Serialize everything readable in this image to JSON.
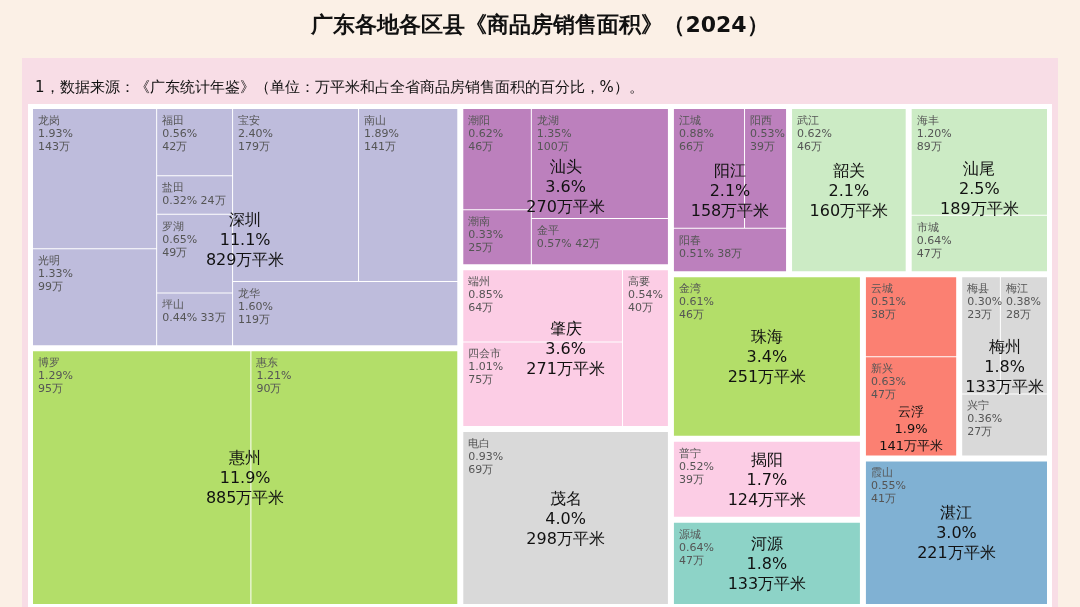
{
  "chart_data": {
    "type": "other",
    "title": "广东各地各区县《商品房销售面积》（2024）",
    "subtitle": "1，数据来源：《广东统计年鉴》（单位：万平米和占全省商品房销售面积的百分比，%）。",
    "categories": [
      "深圳",
      "惠州",
      "汕头",
      "肇庆",
      "茂名",
      "阳江",
      "韶关",
      "汕尾",
      "珠海",
      "揭阳",
      "河源",
      "云浮",
      "梅州",
      "湛江",
      "龙岗",
      "光明",
      "福田",
      "盐田",
      "罗湖",
      "坪山",
      "宝安",
      "南山",
      "龙华",
      "博罗",
      "惠东",
      "潮阳",
      "潮南",
      "龙湖",
      "金平",
      "端州",
      "四会市",
      "高要",
      "电白",
      "江城",
      "阳西",
      "阳春",
      "武江",
      "海丰",
      "市城",
      "金湾",
      "普宁",
      "源城",
      "云城",
      "新兴",
      "梅县",
      "梅江",
      "兴宁",
      "霞山"
    ],
    "series": [
      {
        "color": "#bebcdc",
        "values": [
          829,
          null,
          null,
          null,
          null,
          null,
          null,
          null,
          null,
          null,
          null,
          null,
          null,
          null,
          143,
          99,
          42,
          24,
          49,
          33,
          179,
          141,
          119,
          null,
          null,
          null,
          null,
          null,
          null,
          null,
          null,
          null,
          null,
          null,
          null,
          null,
          null,
          null,
          null,
          null,
          null,
          null,
          null,
          null,
          null,
          null,
          null,
          null
        ],
        "value_labels": [
          "11.1%\n829万平米",
          null,
          null,
          null,
          null,
          null,
          null,
          null,
          null,
          null,
          null,
          null,
          null,
          null,
          "1.93%\n143万",
          "1.33%\n99万",
          "0.56%\n42万",
          "0.32%\n24万",
          "0.65%\n49万",
          "0.44%\n33万",
          "2.40%\n179万",
          "1.89%\n141万",
          "1.60%\n119万",
          null,
          null,
          null,
          null,
          null,
          null,
          null,
          null,
          null,
          null,
          null,
          null,
          null,
          null,
          null,
          null,
          null,
          null,
          null,
          null,
          null,
          null,
          null,
          null,
          null
        ]
      },
      {
        "color": "#b3de69",
        "values": [
          null,
          885,
          null,
          null,
          null,
          null,
          null,
          null,
          null,
          null,
          null,
          null,
          null,
          null,
          null,
          null,
          null,
          null,
          null,
          null,
          null,
          null,
          null,
          95,
          90,
          null,
          null,
          null,
          null,
          null,
          null,
          null,
          null,
          null,
          null,
          null,
          null,
          null,
          null,
          null,
          null,
          null,
          null,
          null,
          null,
          null,
          null,
          null
        ],
        "value_labels": [
          null,
          "11.9%\n885万平米",
          null,
          null,
          null,
          null,
          null,
          null,
          null,
          null,
          null,
          null,
          null,
          null,
          null,
          null,
          null,
          null,
          null,
          null,
          null,
          null,
          null,
          "1.29%\n95万",
          "1.21%\n90万",
          null,
          null,
          null,
          null,
          null,
          null,
          null,
          null,
          null,
          null,
          null,
          null,
          null,
          null,
          null,
          null,
          null,
          null,
          null,
          null,
          null,
          null,
          null
        ]
      },
      {
        "color": "#bc80bd",
        "values": [
          null,
          null,
          270,
          null,
          null,
          null,
          null,
          null,
          null,
          null,
          null,
          null,
          null,
          null,
          null,
          null,
          null,
          null,
          null,
          null,
          null,
          null,
          null,
          null,
          null,
          46,
          25,
          100,
          42,
          null,
          null,
          null,
          null,
          null,
          null,
          null,
          null,
          null,
          null,
          null,
          null,
          null,
          null,
          null,
          null,
          null,
          null,
          null
        ],
        "value_labels": [
          null,
          null,
          "3.6%\n270万平米",
          null,
          null,
          null,
          null,
          null,
          null,
          null,
          null,
          null,
          null,
          null,
          null,
          null,
          null,
          null,
          null,
          null,
          null,
          null,
          null,
          null,
          null,
          "0.62%\n46万",
          "0.33%\n25万",
          "1.35%\n100万",
          "0.57%\n42万",
          null,
          null,
          null,
          null,
          null,
          null,
          null,
          null,
          null,
          null,
          null,
          null,
          null,
          null,
          null,
          null,
          null,
          null,
          null
        ]
      },
      {
        "color": "#fccde5",
        "values": [
          null,
          null,
          null,
          271,
          null,
          null,
          null,
          null,
          null,
          null,
          null,
          null,
          null,
          null,
          null,
          null,
          null,
          null,
          null,
          null,
          null,
          null,
          null,
          null,
          null,
          null,
          null,
          null,
          null,
          64,
          75,
          40,
          null,
          null,
          null,
          null,
          null,
          null,
          null,
          null,
          null,
          null,
          null,
          null,
          null,
          null,
          null,
          null
        ],
        "value_labels": [
          null,
          null,
          null,
          "3.6%\n271万平米",
          null,
          null,
          null,
          null,
          null,
          null,
          null,
          null,
          null,
          null,
          null,
          null,
          null,
          null,
          null,
          null,
          null,
          null,
          null,
          null,
          null,
          null,
          null,
          null,
          null,
          "0.85%\n64万",
          "1.01%\n75万",
          "0.54%\n40万",
          null,
          null,
          null,
          null,
          null,
          null,
          null,
          null,
          null,
          null,
          null,
          null,
          null,
          null,
          null,
          null
        ]
      },
      {
        "color": "#d9d9d9",
        "values": [
          null,
          null,
          null,
          null,
          298,
          null,
          null,
          null,
          null,
          null,
          null,
          null,
          null,
          null,
          null,
          null,
          null,
          null,
          null,
          null,
          null,
          null,
          null,
          null,
          null,
          null,
          null,
          null,
          null,
          null,
          null,
          null,
          69,
          null,
          null,
          null,
          null,
          null,
          null,
          null,
          null,
          null,
          null,
          null,
          null,
          null,
          null,
          null
        ],
        "value_labels": [
          null,
          null,
          null,
          null,
          "4.0%\n298万平米",
          null,
          null,
          null,
          null,
          null,
          null,
          null,
          null,
          null,
          null,
          null,
          null,
          null,
          null,
          null,
          null,
          null,
          null,
          null,
          null,
          null,
          null,
          null,
          null,
          null,
          null,
          null,
          "0.93%\n69万",
          null,
          null,
          null,
          null,
          null,
          null,
          null,
          null,
          null,
          null,
          null,
          null,
          null,
          null,
          null
        ]
      },
      {
        "color": "#bc80bd",
        "values": [
          null,
          null,
          null,
          null,
          null,
          158,
          null,
          null,
          null,
          null,
          null,
          null,
          null,
          null,
          null,
          null,
          null,
          null,
          null,
          null,
          null,
          null,
          null,
          null,
          null,
          null,
          null,
          null,
          null,
          null,
          null,
          null,
          null,
          66,
          39,
          38,
          null,
          null,
          null,
          null,
          null,
          null,
          null,
          null,
          null,
          null,
          null,
          null
        ],
        "value_labels": [
          null,
          null,
          null,
          null,
          null,
          "2.1%\n158万平米",
          null,
          null,
          null,
          null,
          null,
          null,
          null,
          null,
          null,
          null,
          null,
          null,
          null,
          null,
          null,
          null,
          null,
          null,
          null,
          null,
          null,
          null,
          null,
          null,
          null,
          null,
          null,
          "0.88%\n66万",
          "0.53%\n39万",
          "0.51%\n38万",
          null,
          null,
          null,
          null,
          null,
          null,
          null,
          null,
          null,
          null,
          null,
          null
        ]
      },
      {
        "color": "#ccebc5",
        "values": [
          null,
          null,
          null,
          null,
          null,
          null,
          160,
          null,
          null,
          null,
          null,
          null,
          null,
          null,
          null,
          null,
          null,
          null,
          null,
          null,
          null,
          null,
          null,
          null,
          null,
          null,
          null,
          null,
          null,
          null,
          null,
          null,
          null,
          null,
          null,
          null,
          46,
          null,
          null,
          null,
          null,
          null,
          null,
          null,
          null,
          null,
          null,
          null
        ],
        "value_labels": [
          null,
          null,
          null,
          null,
          null,
          null,
          "2.1%\n160万平米",
          null,
          null,
          null,
          null,
          null,
          null,
          null,
          null,
          null,
          null,
          null,
          null,
          null,
          null,
          null,
          null,
          null,
          null,
          null,
          null,
          null,
          null,
          null,
          null,
          null,
          null,
          null,
          null,
          null,
          "0.62%\n46万",
          null,
          null,
          null,
          null,
          null,
          null,
          null,
          null,
          null,
          null,
          null
        ]
      },
      {
        "color": "#ccebc5",
        "values": [
          null,
          null,
          null,
          null,
          null,
          null,
          null,
          189,
          null,
          null,
          null,
          null,
          null,
          null,
          null,
          null,
          null,
          null,
          null,
          null,
          null,
          null,
          null,
          null,
          null,
          null,
          null,
          null,
          null,
          null,
          null,
          null,
          null,
          null,
          null,
          null,
          null,
          89,
          47,
          null,
          null,
          null,
          null,
          null,
          null,
          null,
          null,
          null
        ],
        "value_labels": [
          null,
          null,
          null,
          null,
          null,
          null,
          null,
          "2.5%\n189万平米",
          null,
          null,
          null,
          null,
          null,
          null,
          null,
          null,
          null,
          null,
          null,
          null,
          null,
          null,
          null,
          null,
          null,
          null,
          null,
          null,
          null,
          null,
          null,
          null,
          null,
          null,
          null,
          null,
          null,
          "1.20%\n89万",
          "0.64%\n47万",
          null,
          null,
          null,
          null,
          null,
          null,
          null,
          null,
          null
        ]
      },
      {
        "color": "#b3de69",
        "values": [
          null,
          null,
          null,
          null,
          null,
          null,
          null,
          null,
          251,
          null,
          null,
          null,
          null,
          null,
          null,
          null,
          null,
          null,
          null,
          null,
          null,
          null,
          null,
          null,
          null,
          null,
          null,
          null,
          null,
          null,
          null,
          null,
          null,
          null,
          null,
          null,
          null,
          null,
          null,
          46,
          null,
          null,
          null,
          null,
          null,
          null,
          null,
          null
        ],
        "value_labels": [
          null,
          null,
          null,
          null,
          null,
          null,
          null,
          null,
          "3.4%\n251万平米",
          null,
          null,
          null,
          null,
          null,
          null,
          null,
          null,
          null,
          null,
          null,
          null,
          null,
          null,
          null,
          null,
          null,
          null,
          null,
          null,
          null,
          null,
          null,
          null,
          null,
          null,
          null,
          null,
          null,
          null,
          "0.61%\n46万",
          null,
          null,
          null,
          null,
          null,
          null,
          null,
          null
        ]
      },
      {
        "color": "#fccde5",
        "values": [
          null,
          null,
          null,
          null,
          null,
          null,
          null,
          null,
          null,
          124,
          null,
          null,
          null,
          null,
          null,
          null,
          null,
          null,
          null,
          null,
          null,
          null,
          null,
          null,
          null,
          null,
          null,
          null,
          null,
          null,
          null,
          null,
          null,
          null,
          null,
          null,
          null,
          null,
          null,
          null,
          39,
          null,
          null,
          null,
          null,
          null,
          null,
          null
        ],
        "value_labels": [
          null,
          null,
          null,
          null,
          null,
          null,
          null,
          null,
          null,
          "1.7%\n124万平米",
          null,
          null,
          null,
          null,
          null,
          null,
          null,
          null,
          null,
          null,
          null,
          null,
          null,
          null,
          null,
          null,
          null,
          null,
          null,
          null,
          null,
          null,
          null,
          null,
          null,
          null,
          null,
          null,
          null,
          null,
          "0.52%\n39万",
          null,
          null,
          null,
          null,
          null,
          null,
          null
        ]
      },
      {
        "color": "#8dd3c7",
        "values": [
          null,
          null,
          null,
          null,
          null,
          null,
          null,
          null,
          null,
          null,
          133,
          null,
          null,
          null,
          null,
          null,
          null,
          null,
          null,
          null,
          null,
          null,
          null,
          null,
          null,
          null,
          null,
          null,
          null,
          null,
          null,
          null,
          null,
          null,
          null,
          null,
          null,
          null,
          null,
          null,
          null,
          47,
          null,
          null,
          null,
          null,
          null,
          null
        ],
        "value_labels": [
          null,
          null,
          null,
          null,
          null,
          null,
          null,
          null,
          null,
          null,
          "1.8%\n133万平米",
          null,
          null,
          null,
          null,
          null,
          null,
          null,
          null,
          null,
          null,
          null,
          null,
          null,
          null,
          null,
          null,
          null,
          null,
          null,
          null,
          null,
          null,
          null,
          null,
          null,
          null,
          null,
          null,
          null,
          null,
          "0.64%\n47万",
          null,
          null,
          null,
          null,
          null,
          null
        ]
      },
      {
        "color": "#fb8072",
        "values": [
          null,
          null,
          null,
          null,
          null,
          null,
          null,
          null,
          null,
          null,
          null,
          141,
          null,
          null,
          null,
          null,
          null,
          null,
          null,
          null,
          null,
          null,
          null,
          null,
          null,
          null,
          null,
          null,
          null,
          null,
          null,
          null,
          null,
          null,
          null,
          null,
          null,
          null,
          null,
          null,
          null,
          null,
          38,
          47,
          null,
          null,
          null,
          null
        ],
        "value_labels": [
          null,
          null,
          null,
          null,
          null,
          null,
          null,
          null,
          null,
          null,
          null,
          "1.9%\n141万平米",
          null,
          null,
          null,
          null,
          null,
          null,
          null,
          null,
          null,
          null,
          null,
          null,
          null,
          null,
          null,
          null,
          null,
          null,
          null,
          null,
          null,
          null,
          null,
          null,
          null,
          null,
          null,
          null,
          null,
          null,
          "0.51%\n38万",
          "0.63%\n47万",
          null,
          null,
          null,
          null
        ]
      },
      {
        "color": "#d9d9d9",
        "values": [
          null,
          null,
          null,
          null,
          null,
          null,
          null,
          null,
          null,
          null,
          null,
          null,
          133,
          null,
          null,
          null,
          null,
          null,
          null,
          null,
          null,
          null,
          null,
          null,
          null,
          null,
          null,
          null,
          null,
          null,
          null,
          null,
          null,
          null,
          null,
          null,
          null,
          null,
          null,
          null,
          null,
          null,
          null,
          null,
          23,
          28,
          27,
          null
        ],
        "value_labels": [
          null,
          null,
          null,
          null,
          null,
          null,
          null,
          null,
          null,
          null,
          null,
          null,
          "1.8%\n133万平米",
          null,
          null,
          null,
          null,
          null,
          null,
          null,
          null,
          null,
          null,
          null,
          null,
          null,
          null,
          null,
          null,
          null,
          null,
          null,
          null,
          null,
          null,
          null,
          null,
          null,
          null,
          null,
          null,
          null,
          null,
          null,
          "0.30%\n23万",
          "0.38%\n28万",
          "0.36%\n27万",
          null
        ]
      },
      {
        "color": "#80b1d3",
        "values": [
          null,
          null,
          null,
          null,
          null,
          null,
          null,
          null,
          null,
          null,
          null,
          null,
          null,
          221,
          null,
          null,
          null,
          null,
          null,
          null,
          null,
          null,
          null,
          null,
          null,
          null,
          null,
          null,
          null,
          null,
          null,
          null,
          null,
          null,
          null,
          null,
          null,
          null,
          null,
          null,
          null,
          null,
          null,
          null,
          null,
          null,
          null,
          41
        ],
        "value_labels": [
          null,
          null,
          null,
          null,
          null,
          null,
          null,
          null,
          null,
          null,
          null,
          null,
          null,
          "3.0%\n221万平米",
          null,
          null,
          null,
          null,
          null,
          null,
          null,
          null,
          null,
          null,
          null,
          null,
          null,
          null,
          null,
          null,
          null,
          null,
          null,
          null,
          null,
          null,
          null,
          null,
          null,
          null,
          null,
          null,
          null,
          null,
          null,
          null,
          null,
          "0.55%\n41万"
        ]
      }
    ]
  }
}
